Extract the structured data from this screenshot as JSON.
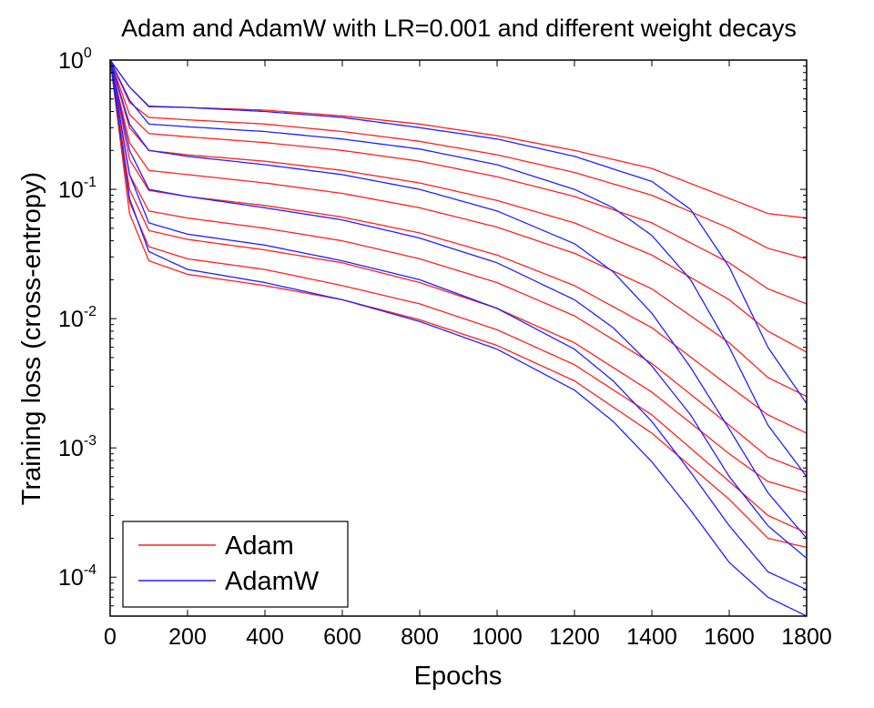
{
  "chart_data": {
    "type": "line",
    "title": "Adam and AdamW with LR=0.001 and different weight decays",
    "xlabel": "Epochs",
    "ylabel": "Training loss (cross-entropy)",
    "xlim": [
      0,
      1800
    ],
    "ylim": [
      5e-05,
      1
    ],
    "yscale": "log",
    "xticks": [
      0,
      200,
      400,
      600,
      800,
      1000,
      1200,
      1400,
      1600,
      1800
    ],
    "yticks": [
      {
        "value": 0.0001,
        "base": "10",
        "exp": "-4"
      },
      {
        "value": 0.001,
        "base": "10",
        "exp": "-3"
      },
      {
        "value": 0.01,
        "base": "10",
        "exp": "-2"
      },
      {
        "value": 0.1,
        "base": "10",
        "exp": "-1"
      },
      {
        "value": 1,
        "base": "10",
        "exp": "0"
      }
    ],
    "grid": false,
    "legend_position": "bottom-left",
    "colors": {
      "Adam": "#ff2020",
      "AdamW": "#2020ff"
    },
    "legend": [
      "Adam",
      "AdamW"
    ],
    "series": [
      {
        "name": "Adam",
        "values": [
          [
            0,
            1
          ],
          [
            50,
            0.62
          ],
          [
            100,
            0.435
          ],
          [
            200,
            0.43
          ],
          [
            400,
            0.41
          ],
          [
            600,
            0.37
          ],
          [
            800,
            0.32
          ],
          [
            1000,
            0.26
          ],
          [
            1200,
            0.2
          ],
          [
            1400,
            0.145
          ],
          [
            1600,
            0.085
          ],
          [
            1700,
            0.065
          ],
          [
            1800,
            0.06
          ]
        ]
      },
      {
        "name": "Adam",
        "values": [
          [
            0,
            1
          ],
          [
            50,
            0.47
          ],
          [
            100,
            0.36
          ],
          [
            200,
            0.345
          ],
          [
            400,
            0.32
          ],
          [
            600,
            0.28
          ],
          [
            800,
            0.235
          ],
          [
            1000,
            0.185
          ],
          [
            1200,
            0.135
          ],
          [
            1400,
            0.09
          ],
          [
            1600,
            0.05
          ],
          [
            1700,
            0.035
          ],
          [
            1800,
            0.029
          ]
        ]
      },
      {
        "name": "Adam",
        "values": [
          [
            0,
            1
          ],
          [
            50,
            0.38
          ],
          [
            100,
            0.27
          ],
          [
            200,
            0.255
          ],
          [
            400,
            0.23
          ],
          [
            600,
            0.2
          ],
          [
            800,
            0.165
          ],
          [
            1000,
            0.125
          ],
          [
            1200,
            0.088
          ],
          [
            1400,
            0.055
          ],
          [
            1600,
            0.027
          ],
          [
            1700,
            0.017
          ],
          [
            1800,
            0.013
          ]
        ]
      },
      {
        "name": "Adam",
        "values": [
          [
            0,
            1
          ],
          [
            50,
            0.3
          ],
          [
            100,
            0.2
          ],
          [
            200,
            0.185
          ],
          [
            400,
            0.165
          ],
          [
            600,
            0.14
          ],
          [
            800,
            0.112
          ],
          [
            1000,
            0.082
          ],
          [
            1200,
            0.055
          ],
          [
            1400,
            0.031
          ],
          [
            1600,
            0.014
          ],
          [
            1700,
            0.008
          ],
          [
            1800,
            0.0055
          ]
        ]
      },
      {
        "name": "Adam",
        "values": [
          [
            0,
            1
          ],
          [
            50,
            0.23
          ],
          [
            100,
            0.14
          ],
          [
            200,
            0.13
          ],
          [
            400,
            0.112
          ],
          [
            600,
            0.093
          ],
          [
            800,
            0.072
          ],
          [
            1000,
            0.051
          ],
          [
            1200,
            0.032
          ],
          [
            1400,
            0.017
          ],
          [
            1600,
            0.0065
          ],
          [
            1700,
            0.0035
          ],
          [
            1800,
            0.0025
          ]
        ]
      },
      {
        "name": "Adam",
        "values": [
          [
            0,
            1
          ],
          [
            50,
            0.17
          ],
          [
            100,
            0.098
          ],
          [
            200,
            0.088
          ],
          [
            400,
            0.075
          ],
          [
            600,
            0.061
          ],
          [
            800,
            0.046
          ],
          [
            1000,
            0.031
          ],
          [
            1200,
            0.018
          ],
          [
            1400,
            0.0085
          ],
          [
            1600,
            0.003
          ],
          [
            1700,
            0.0018
          ],
          [
            1800,
            0.0013
          ]
        ]
      },
      {
        "name": "Adam",
        "values": [
          [
            0,
            1
          ],
          [
            50,
            0.13
          ],
          [
            100,
            0.068
          ],
          [
            200,
            0.06
          ],
          [
            400,
            0.05
          ],
          [
            600,
            0.04
          ],
          [
            800,
            0.029
          ],
          [
            1000,
            0.019
          ],
          [
            1200,
            0.0105
          ],
          [
            1400,
            0.0045
          ],
          [
            1600,
            0.0015
          ],
          [
            1700,
            0.00085
          ],
          [
            1800,
            0.00065
          ]
        ]
      },
      {
        "name": "Adam",
        "values": [
          [
            0,
            1
          ],
          [
            50,
            0.1
          ],
          [
            100,
            0.048
          ],
          [
            200,
            0.041
          ],
          [
            400,
            0.034
          ],
          [
            600,
            0.027
          ],
          [
            800,
            0.019
          ],
          [
            1000,
            0.012
          ],
          [
            1200,
            0.0065
          ],
          [
            1400,
            0.0027
          ],
          [
            1600,
            0.0009
          ],
          [
            1700,
            0.00055
          ],
          [
            1800,
            0.00045
          ]
        ]
      },
      {
        "name": "Adam",
        "values": [
          [
            0,
            1
          ],
          [
            50,
            0.08
          ],
          [
            100,
            0.036
          ],
          [
            200,
            0.029
          ],
          [
            400,
            0.024
          ],
          [
            600,
            0.018
          ],
          [
            800,
            0.013
          ],
          [
            1000,
            0.0082
          ],
          [
            1200,
            0.0044
          ],
          [
            1400,
            0.0018
          ],
          [
            1600,
            0.00055
          ],
          [
            1700,
            0.0003
          ],
          [
            1800,
            0.00022
          ]
        ]
      },
      {
        "name": "Adam",
        "values": [
          [
            0,
            1
          ],
          [
            50,
            0.065
          ],
          [
            100,
            0.028
          ],
          [
            200,
            0.022
          ],
          [
            400,
            0.018
          ],
          [
            600,
            0.014
          ],
          [
            800,
            0.0098
          ],
          [
            1000,
            0.0062
          ],
          [
            1200,
            0.0033
          ],
          [
            1400,
            0.0013
          ],
          [
            1600,
            0.0004
          ],
          [
            1700,
            0.0002
          ],
          [
            1800,
            0.00017
          ]
        ]
      },
      {
        "name": "AdamW",
        "values": [
          [
            0,
            1
          ],
          [
            50,
            0.62
          ],
          [
            100,
            0.44
          ],
          [
            200,
            0.43
          ],
          [
            400,
            0.4
          ],
          [
            600,
            0.36
          ],
          [
            800,
            0.3
          ],
          [
            1000,
            0.245
          ],
          [
            1200,
            0.18
          ],
          [
            1400,
            0.115
          ],
          [
            1500,
            0.07
          ],
          [
            1600,
            0.025
          ],
          [
            1700,
            0.006
          ],
          [
            1800,
            0.0022
          ]
        ]
      },
      {
        "name": "AdamW",
        "values": [
          [
            0,
            1
          ],
          [
            50,
            0.49
          ],
          [
            100,
            0.32
          ],
          [
            200,
            0.305
          ],
          [
            400,
            0.28
          ],
          [
            600,
            0.245
          ],
          [
            800,
            0.205
          ],
          [
            1000,
            0.155
          ],
          [
            1200,
            0.1
          ],
          [
            1300,
            0.072
          ],
          [
            1400,
            0.044
          ],
          [
            1500,
            0.02
          ],
          [
            1600,
            0.006
          ],
          [
            1700,
            0.0015
          ],
          [
            1800,
            0.0006
          ]
        ]
      },
      {
        "name": "AdamW",
        "values": [
          [
            0,
            1
          ],
          [
            50,
            0.32
          ],
          [
            100,
            0.2
          ],
          [
            200,
            0.18
          ],
          [
            400,
            0.155
          ],
          [
            600,
            0.13
          ],
          [
            800,
            0.1
          ],
          [
            1000,
            0.068
          ],
          [
            1200,
            0.038
          ],
          [
            1300,
            0.023
          ],
          [
            1400,
            0.011
          ],
          [
            1500,
            0.0042
          ],
          [
            1600,
            0.0014
          ],
          [
            1700,
            0.00045
          ],
          [
            1800,
            0.0002
          ]
        ]
      },
      {
        "name": "AdamW",
        "values": [
          [
            0,
            1
          ],
          [
            50,
            0.2
          ],
          [
            100,
            0.1
          ],
          [
            200,
            0.088
          ],
          [
            400,
            0.072
          ],
          [
            600,
            0.058
          ],
          [
            800,
            0.042
          ],
          [
            1000,
            0.027
          ],
          [
            1200,
            0.014
          ],
          [
            1300,
            0.0085
          ],
          [
            1400,
            0.0043
          ],
          [
            1500,
            0.0018
          ],
          [
            1600,
            0.0006
          ],
          [
            1700,
            0.00025
          ],
          [
            1800,
            0.00014
          ]
        ]
      },
      {
        "name": "AdamW",
        "values": [
          [
            0,
            1
          ],
          [
            50,
            0.13
          ],
          [
            100,
            0.055
          ],
          [
            200,
            0.045
          ],
          [
            400,
            0.037
          ],
          [
            600,
            0.028
          ],
          [
            800,
            0.02
          ],
          [
            1000,
            0.012
          ],
          [
            1200,
            0.0058
          ],
          [
            1300,
            0.0033
          ],
          [
            1400,
            0.0016
          ],
          [
            1500,
            0.00065
          ],
          [
            1600,
            0.00025
          ],
          [
            1700,
            0.00011
          ],
          [
            1800,
            8e-05
          ]
        ]
      },
      {
        "name": "AdamW",
        "values": [
          [
            0,
            1
          ],
          [
            50,
            0.085
          ],
          [
            100,
            0.033
          ],
          [
            200,
            0.024
          ],
          [
            400,
            0.019
          ],
          [
            600,
            0.014
          ],
          [
            800,
            0.0095
          ],
          [
            1000,
            0.0058
          ],
          [
            1200,
            0.0028
          ],
          [
            1300,
            0.0016
          ],
          [
            1400,
            0.00078
          ],
          [
            1500,
            0.00033
          ],
          [
            1600,
            0.00013
          ],
          [
            1700,
            7e-05
          ],
          [
            1800,
            5e-05
          ]
        ]
      }
    ]
  }
}
